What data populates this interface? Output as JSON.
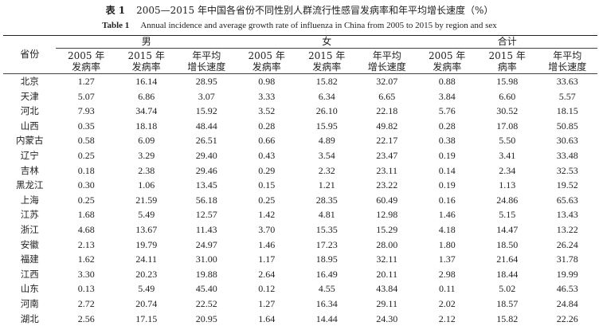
{
  "caption": {
    "cn_label": "表 1",
    "cn_text": "2005—2015 年中国各省份不同性别人群流行性感冒发病率和年平均增长速度（%）",
    "en_label": "Table 1",
    "en_text": "Annual incidence and average growth rate of influenza in China from 2005 to 2015 by region and sex"
  },
  "header": {
    "province": "省份",
    "groups": [
      "男",
      "女",
      "合计"
    ],
    "sub_columns": [
      [
        "2005 年",
        "发病率"
      ],
      [
        "2015 年",
        "发病率"
      ],
      [
        "年平均",
        "增长速度"
      ],
      [
        "2005 年",
        "发病率"
      ],
      [
        "2015 年",
        "发病率"
      ],
      [
        "年平均",
        "增长速度"
      ],
      [
        "2005 年",
        "发病率"
      ],
      [
        "2015 年",
        "病率"
      ],
      [
        "年平均",
        "增长速度"
      ]
    ]
  },
  "rows": [
    {
      "name": "北京",
      "values": [
        "1.27",
        "16.14",
        "28.95",
        "0.98",
        "15.82",
        "32.07",
        "0.88",
        "15.98",
        "33.63"
      ]
    },
    {
      "name": "天津",
      "values": [
        "5.07",
        "6.86",
        "3.07",
        "3.33",
        "6.34",
        "6.65",
        "3.84",
        "6.60",
        "5.57"
      ]
    },
    {
      "name": "河北",
      "values": [
        "7.93",
        "34.74",
        "15.92",
        "3.52",
        "26.10",
        "22.18",
        "5.76",
        "30.52",
        "18.15"
      ]
    },
    {
      "name": "山西",
      "values": [
        "0.35",
        "18.18",
        "48.44",
        "0.28",
        "15.95",
        "49.82",
        "0.28",
        "17.08",
        "50.85"
      ]
    },
    {
      "name": "内蒙古",
      "values": [
        "0.58",
        "6.09",
        "26.51",
        "0.66",
        "4.89",
        "22.17",
        "0.38",
        "5.50",
        "30.63"
      ]
    },
    {
      "name": "辽宁",
      "values": [
        "0.25",
        "3.29",
        "29.40",
        "0.43",
        "3.54",
        "23.47",
        "0.19",
        "3.41",
        "33.48"
      ]
    },
    {
      "name": "吉林",
      "values": [
        "0.18",
        "2.38",
        "29.46",
        "0.29",
        "2.32",
        "23.11",
        "0.14",
        "2.34",
        "32.53"
      ]
    },
    {
      "name": "黑龙江",
      "values": [
        "0.30",
        "1.06",
        "13.45",
        "0.15",
        "1.21",
        "23.22",
        "0.19",
        "1.13",
        "19.52"
      ]
    },
    {
      "name": "上海",
      "values": [
        "0.25",
        "21.59",
        "56.18",
        "0.25",
        "28.35",
        "60.49",
        "0.16",
        "24.86",
        "65.63"
      ]
    },
    {
      "name": "江苏",
      "values": [
        "1.68",
        "5.49",
        "12.57",
        "1.42",
        "4.81",
        "12.98",
        "1.46",
        "5.15",
        "13.43"
      ]
    },
    {
      "name": "浙江",
      "values": [
        "4.68",
        "13.67",
        "11.43",
        "3.70",
        "15.35",
        "15.29",
        "4.18",
        "14.47",
        "13.22"
      ]
    },
    {
      "name": "安徽",
      "values": [
        "2.13",
        "19.79",
        "24.97",
        "1.46",
        "17.23",
        "28.00",
        "1.80",
        "18.50",
        "26.24"
      ]
    },
    {
      "name": "福建",
      "values": [
        "1.62",
        "24.11",
        "31.00",
        "1.17",
        "18.95",
        "32.11",
        "1.37",
        "21.64",
        "31.78"
      ]
    },
    {
      "name": "江西",
      "values": [
        "3.30",
        "20.23",
        "19.88",
        "2.64",
        "16.49",
        "20.11",
        "2.98",
        "18.44",
        "19.99"
      ]
    },
    {
      "name": "山东",
      "values": [
        "0.13",
        "5.49",
        "45.40",
        "0.12",
        "4.55",
        "43.84",
        "0.11",
        "5.02",
        "46.53"
      ]
    },
    {
      "name": "河南",
      "values": [
        "2.72",
        "20.74",
        "22.52",
        "1.27",
        "16.34",
        "29.11",
        "2.02",
        "18.57",
        "24.84"
      ]
    },
    {
      "name": "湖北",
      "values": [
        "2.56",
        "17.15",
        "20.95",
        "1.64",
        "14.44",
        "24.30",
        "2.12",
        "15.82",
        "22.26"
      ]
    }
  ]
}
